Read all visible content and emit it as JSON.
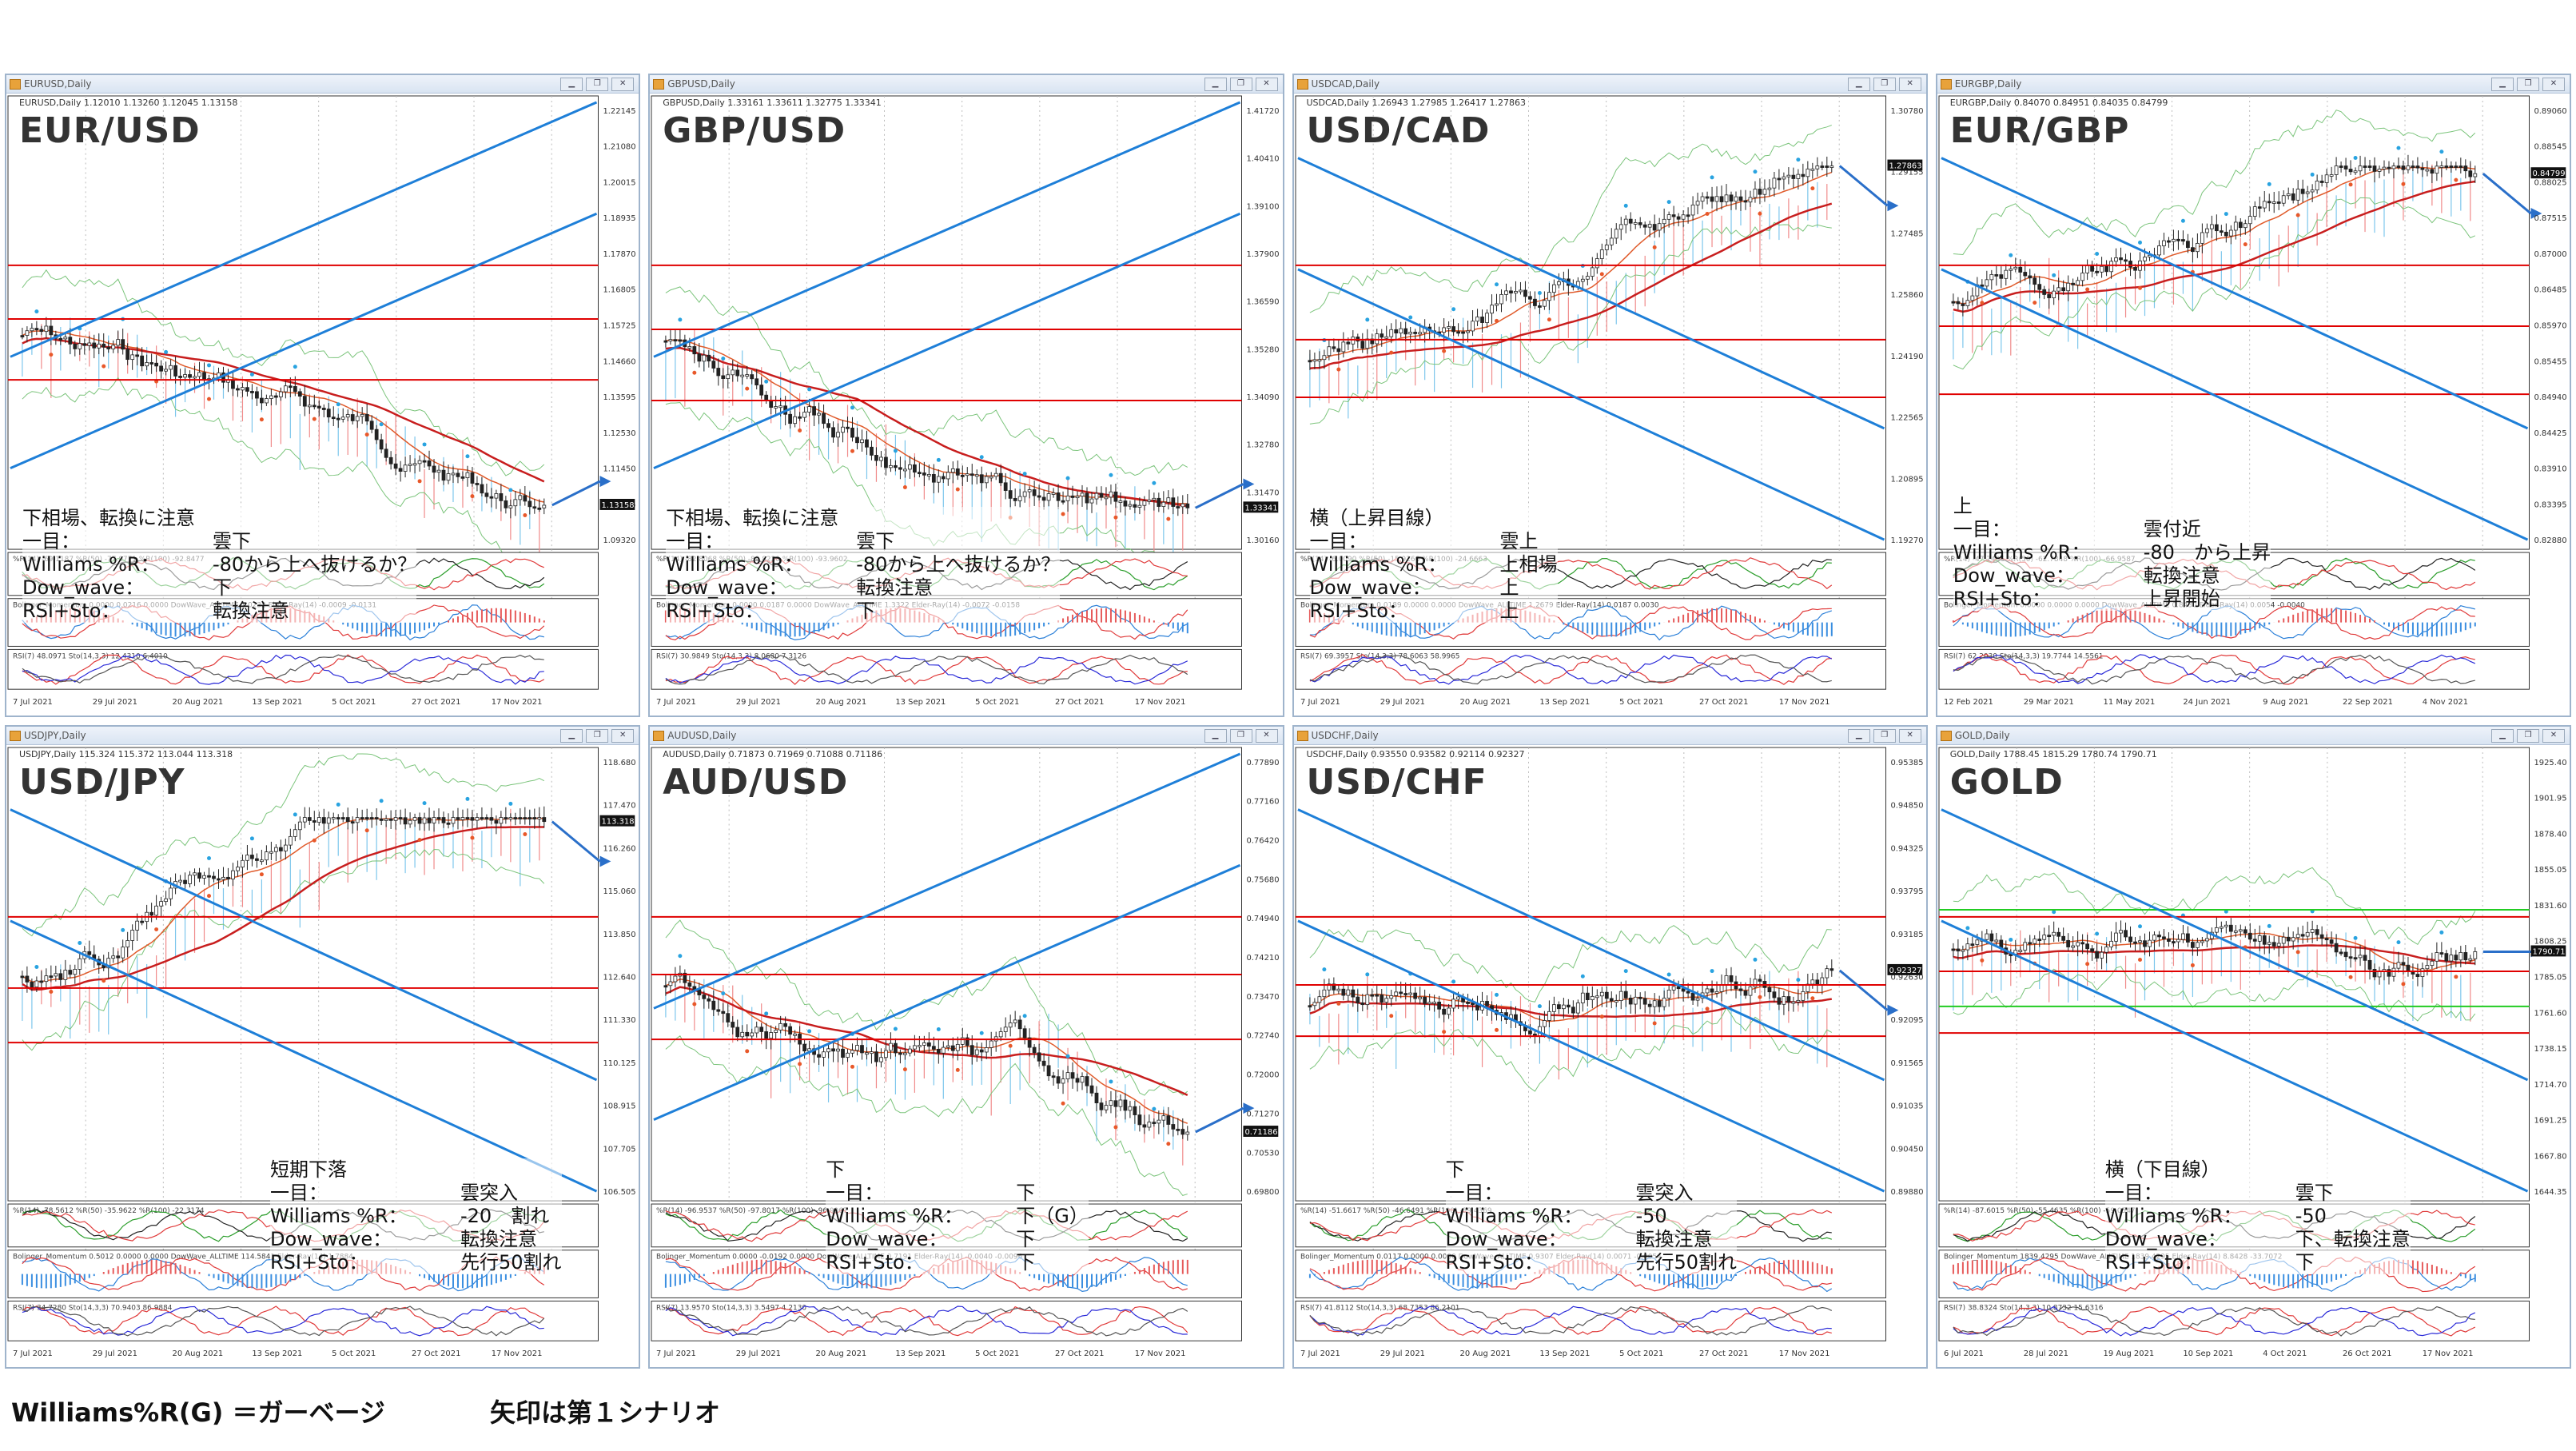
{
  "footer": {
    "legend": "Williams%R(G) ＝ガーベージ",
    "arrow_note": "矢印は第１シナリオ"
  },
  "charts": [
    {
      "window_title": "EURUSD,Daily",
      "info": "EURUSD,Daily  1.12010 1.13260 1.12045 1.13158",
      "pair": "EUR/USD",
      "notes": {
        "header": "下相場、転換に注意",
        "rows": [
          {
            "k": "一目：",
            "v": "雲下"
          },
          {
            "k": "Williams %R：",
            "v": "-80から上へ抜けるか？"
          },
          {
            "k": "Dow_wave：",
            "v": "下"
          },
          {
            "k": "RSI+Sto：",
            "v": "転換注意"
          }
        ]
      },
      "yticks": [
        "1.22145",
        "1.21080",
        "1.20015",
        "1.18935",
        "1.17870",
        "1.16805",
        "1.15725",
        "1.14660",
        "1.13595",
        "1.12530",
        "1.11450",
        "1.10385",
        "1.09320"
      ],
      "xticks": [
        "7 Jul 2021",
        "29 Jul 2021",
        "20 Aug 2021",
        "13 Sep 2021",
        "5 Oct 2021",
        "27 Oct 2021",
        "17 Nov 2021"
      ],
      "last_price": "1.13158",
      "ind1": "%R(14) -69.1187  %R(50) -77.0771  %R(100) -92.8477",
      "ind2": "Bolinger_Momentum 0.0000 0.0216 0.0000  DowWave_ALLTIME 1.0232  Elder-Ray(14) -0.0009 -0.0131",
      "ind3": "RSI(7) 48.0971  Sto(14,3,3) 12.4310 6.4010"
    },
    {
      "window_title": "GBPUSD,Daily",
      "info": "GBPUSD,Daily  1.33161 1.33611 1.32775 1.33341",
      "pair": "GBP/USD",
      "notes": {
        "header": "下相場、転換に注意",
        "rows": [
          {
            "k": "一目：",
            "v": "雲下"
          },
          {
            "k": "Williams %R：",
            "v": "-80から上へ抜けるか？"
          },
          {
            "k": "Dow_wave：",
            "v": "転換注意"
          },
          {
            "k": "RSI+Sto：",
            "v": "下"
          }
        ]
      },
      "yticks": [
        "1.41720",
        "1.40410",
        "1.39100",
        "1.37900",
        "1.36590",
        "1.35280",
        "1.34090",
        "1.32780",
        "1.31470",
        "1.30160"
      ],
      "xticks": [
        "7 Jul 2021",
        "29 Jul 2021",
        "20 Aug 2021",
        "13 Sep 2021",
        "5 Oct 2021",
        "27 Oct 2021",
        "17 Nov 2021"
      ],
      "last_price": "1.33341",
      "ind1": "%R(14) -82.8068  %R(50) -89.8220  %R(100) -93.9602",
      "ind2": "Bolinger_Momentum 0.0000 0.0187 0.0000  DowWave_ALLTIME 1.3322  Elder-Ray(14) -0.0072 -0.0158",
      "ind3": "RSI(7) 30.9849  Sto(14,3,3) 8.0680 7.3126"
    },
    {
      "window_title": "USDCAD,Daily",
      "info": "USDCAD,Daily  1.26943 1.27985 1.26417 1.27863",
      "pair": "USD/CAD",
      "notes": {
        "header": "横（上昇目線）",
        "rows": [
          {
            "k": "一目：",
            "v": "雲上"
          },
          {
            "k": "Williams %R：",
            "v": "上相場"
          },
          {
            "k": "Dow_wave：",
            "v": "上"
          },
          {
            "k": "RSI+Sto：",
            "v": "上"
          }
        ]
      },
      "yticks": [
        "1.30780",
        "1.29155",
        "1.27485",
        "1.25860",
        "1.24190",
        "1.22565",
        "1.20895",
        "1.19270"
      ],
      "xticks": [
        "7 Jul 2021",
        "29 Jul 2021",
        "20 Aug 2021",
        "13 Sep 2021",
        "5 Oct 2021",
        "27 Oct 2021",
        "17 Nov 2021"
      ],
      "last_price": "1.27863",
      "ind1": "%R(14) -6.0090  %R(50) -15.9266  %R(100) -24.6663",
      "ind2": "Bolinger_Momentum 0.0189 0.0000 0.0000  DowWave_ALLTIME 1.2679  Elder-Ray(14) 0.0187 0.0030",
      "ind3": "RSI(7) 69.3957  Sto(14,3,3) 78.6063 58.9965"
    },
    {
      "window_title": "EURGBP,Daily",
      "info": "EURGBP,Daily  0.84070 0.84951 0.84035 0.84799",
      "pair": "EUR/GBP",
      "notes": {
        "header": "上",
        "rows": [
          {
            "k": "一目：",
            "v": "雲付近"
          },
          {
            "k": "Williams %R：",
            "v": "-80　から上昇"
          },
          {
            "k": "Dow_wave：",
            "v": "転換注意"
          },
          {
            "k": "RSI+Sto：",
            "v": "上昇開始"
          }
        ]
      },
      "yticks": [
        "0.89060",
        "0.88545",
        "0.88025",
        "0.87515",
        "0.87000",
        "0.86485",
        "0.85970",
        "0.85455",
        "0.84940",
        "0.84425",
        "0.83910",
        "0.83395",
        "0.82880"
      ],
      "xticks": [
        "12 Feb 2021",
        "29 Mar 2021",
        "11 May 2021",
        "24 Jun 2021",
        "9 Aug 2021",
        "22 Sep 2021",
        "4 Nov 2021"
      ],
      "last_price": "0.84799",
      "ind1": "%R(14) -47.7436  %R(50) -62.7848  %R(100) -66.9587",
      "ind2": "Bolinger_Momentum 0.0000 0.0000 0.0000  DowWave_ALLTIME 0.8430  Elder-Ray(14) 0.0054 -0.0040",
      "ind3": "RSI(7) 62.2030  Sto(14,3,3) 19.7744 14.5561"
    },
    {
      "window_title": "USDJPY,Daily",
      "info": "USDJPY,Daily  115.324 115.372 113.044 113.318",
      "pair": "USD/JPY",
      "notes": {
        "header": "短期下落",
        "rows": [
          {
            "k": "一目：",
            "v": "雲突入"
          },
          {
            "k": "Williams %R：",
            "v": "-20　割れ"
          },
          {
            "k": "Dow_wave：",
            "v": "転換注意"
          },
          {
            "k": "RSI+Sto：",
            "v": "先行50割れ"
          }
        ]
      },
      "yticks": [
        "118.680",
        "117.470",
        "116.260",
        "115.060",
        "113.850",
        "112.640",
        "111.330",
        "110.125",
        "108.915",
        "107.705",
        "106.505"
      ],
      "xticks": [
        "7 Jul 2021",
        "29 Jul 2021",
        "20 Aug 2021",
        "13 Sep 2021",
        "5 Oct 2021",
        "27 Oct 2021",
        "17 Nov 2021"
      ],
      "last_price": "113.318",
      "ind1": "%R(14) -78.5612  %R(50) -35.9622  %R(100) -22.3174",
      "ind2": "Bolinger_Momentum 0.5012 0.0000 0.0000  DowWave_ALLTIME 114.5841  Elder-Ray(14) 1.7884",
      "ind3": "RSI(7) 34.7280  Sto(14,3,3) 70.9403 86.9884"
    },
    {
      "window_title": "AUDUSD,Daily",
      "info": "AUDUSD,Daily  0.71873 0.71969 0.71088 0.71186",
      "pair": "AUD/USD",
      "notes": {
        "header": "下",
        "rows": [
          {
            "k": "一目：",
            "v": "下"
          },
          {
            "k": "Williams %R：",
            "v": "下（G）"
          },
          {
            "k": "Dow_wave：",
            "v": "下"
          },
          {
            "k": "RSI+Sto：",
            "v": "下"
          }
        ]
      },
      "yticks": [
        "0.77890",
        "0.77160",
        "0.76420",
        "0.75680",
        "0.74940",
        "0.74210",
        "0.73470",
        "0.72740",
        "0.72000",
        "0.71270",
        "0.70530",
        "0.69800"
      ],
      "xticks": [
        "7 Jul 2021",
        "29 Jul 2021",
        "20 Aug 2021",
        "13 Sep 2021",
        "5 Oct 2021",
        "27 Oct 2021",
        "17 Nov 2021"
      ],
      "last_price": "0.71186",
      "ind1": "%R(14) -96.9537  %R(50) -97.8017  %R(100) -96.9967",
      "ind2": "Bolinger_Momentum 0.0000 -0.0192 0.0000  DowWave_ALLTIME 0.7191  Elder-Ray(14) -0.0040 -0.0096",
      "ind3": "RSI(7) 13.9570  Sto(14,3,3) 3.5497 4.2130"
    },
    {
      "window_title": "USDCHF,Daily",
      "info": "USDCHF,Daily  0.93550 0.93582 0.92114 0.92327",
      "pair": "USD/CHF",
      "notes": {
        "header": "下",
        "rows": [
          {
            "k": "一目：",
            "v": "雲突入"
          },
          {
            "k": "Williams %R：",
            "v": "-50"
          },
          {
            "k": "Dow_wave：",
            "v": "転換注意"
          },
          {
            "k": "RSI+Sto：",
            "v": "先行50割れ"
          }
        ]
      },
      "yticks": [
        "0.95385",
        "0.94850",
        "0.94325",
        "0.93795",
        "0.93185",
        "0.92630",
        "0.92095",
        "0.91565",
        "0.91035",
        "0.90450",
        "0.89880"
      ],
      "xticks": [
        "7 Jul 2021",
        "29 Jul 2021",
        "20 Aug 2021",
        "13 Sep 2021",
        "5 Oct 2021",
        "27 Oct 2021",
        "17 Nov 2021"
      ],
      "last_price": "0.92327",
      "ind1": "%R(14) -51.6617  %R(50) -46.6491  %R(100) -39.4369",
      "ind2": "Bolinger_Momentum 0.0117 0.0000 0.0000  DowWave_ALLTIME 0.9307  Elder-Ray(14) 0.0071 -0.0054",
      "ind3": "RSI(7) 41.8112  Sto(14,3,3) 68.7353 86.2101"
    },
    {
      "window_title": "GOLD,Daily",
      "info": "GOLD,Daily  1788.45 1815.29 1780.74 1790.71",
      "pair": "GOLD",
      "notes": {
        "header": "横（下目線）",
        "rows": [
          {
            "k": "一目：",
            "v": "雲下"
          },
          {
            "k": "Williams %R：",
            "v": "-50"
          },
          {
            "k": "Dow_wave：",
            "v": "下、転換注意"
          },
          {
            "k": "RSI+Sto：",
            "v": "下"
          }
        ]
      },
      "yticks": [
        "1925.40",
        "1901.95",
        "1878.40",
        "1855.05",
        "1831.60",
        "1808.25",
        "1785.05",
        "1761.60",
        "1738.15",
        "1714.70",
        "1691.25",
        "1667.80",
        "1644.35"
      ],
      "xticks": [
        "6 Jul 2021",
        "28 Jul 2021",
        "19 Aug 2021",
        "10 Sep 2021",
        "4 Oct 2021",
        "26 Oct 2021",
        "17 Nov 2021"
      ],
      "last_price": "1790.71",
      "ind1": "%R(14) -87.6015  %R(50) -55.4635  %R(100) -59.0547",
      "ind2": "Bolinger_Momentum 1839.4295  DowWave_ALLTIME 1839.4295  Elder-Ray(14) 8.8428 -33.7072",
      "ind3": "RSI(7) 38.8324  Sto(14,3,3) 10.8732 15.6316"
    }
  ]
}
